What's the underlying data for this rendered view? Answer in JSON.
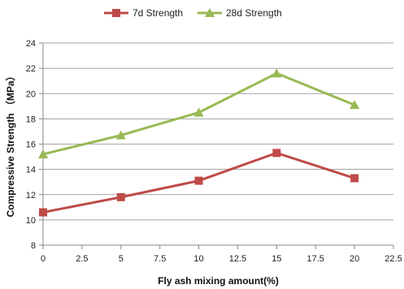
{
  "chart_data": {
    "type": "line",
    "xlabel": "Fly  ash mixing amount(%)",
    "ylabel": "Compressive Strength （MPa）",
    "xlim": [
      0,
      22.5
    ],
    "ylim": [
      8,
      24
    ],
    "xticks": [
      0,
      2.5,
      5,
      7.5,
      10,
      12.5,
      15,
      17.5,
      20,
      22.5
    ],
    "xtick_labels": [
      "0",
      "2.5",
      "5",
      "7.5",
      "10",
      "12.5",
      "15",
      "17.5",
      "20",
      "22.5"
    ],
    "yticks": [
      8,
      10,
      12,
      14,
      16,
      18,
      20,
      22,
      24
    ],
    "ytick_labels": [
      "8",
      "10",
      "12",
      "14",
      "16",
      "18",
      "20",
      "22",
      "24"
    ],
    "grid": "horizontal",
    "legend_position": "top",
    "series": [
      {
        "name": "7d Strength",
        "color": "#be4b48",
        "marker": "square",
        "x": [
          0,
          5,
          10,
          15,
          20
        ],
        "y": [
          10.6,
          11.8,
          13.1,
          15.3,
          13.3
        ]
      },
      {
        "name": "28d Strength",
        "color": "#98b954",
        "marker": "triangle",
        "x": [
          0,
          5,
          10,
          15,
          20
        ],
        "y": [
          15.2,
          16.7,
          18.5,
          21.6,
          19.1
        ]
      }
    ]
  }
}
